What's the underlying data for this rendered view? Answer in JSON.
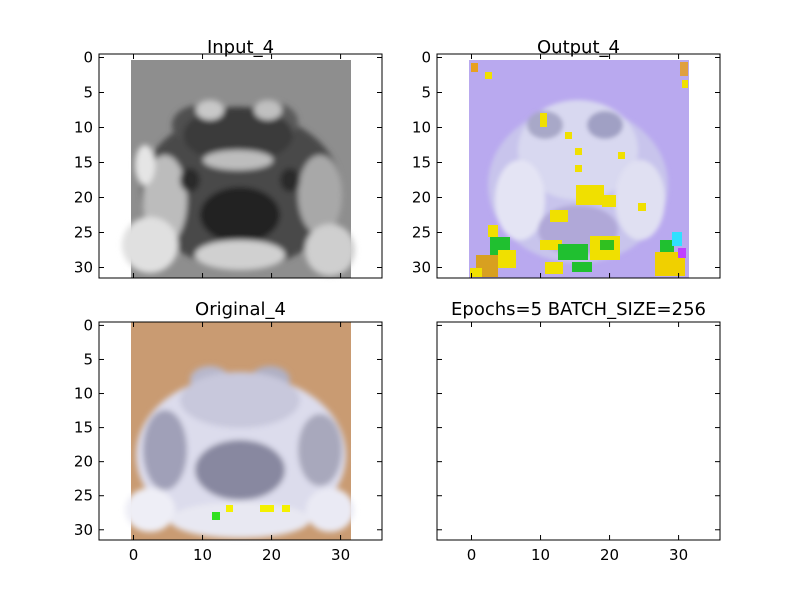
{
  "chart_data": [
    {
      "type": "image",
      "title": "Input_4",
      "xticks": [],
      "yticks": [
        "0",
        "5",
        "10",
        "15",
        "20",
        "25",
        "30"
      ],
      "image_extent": [
        0,
        31.5
      ],
      "colors": {
        "background": "#8e8e8e",
        "dark": "#2a2a2a",
        "light": "#dcdcdc"
      }
    },
    {
      "type": "image",
      "title": "Output_4",
      "xticks": [],
      "yticks": [
        "0",
        "5",
        "10",
        "15",
        "20",
        "25",
        "30"
      ],
      "image_extent": [
        0,
        31.5
      ],
      "colors": {
        "background": "#b9a9ef",
        "body": "#dcdcf0",
        "artifact_yellow": "#f0e000",
        "artifact_green": "#20c030",
        "artifact_cyan": "#30e0ff"
      }
    },
    {
      "type": "image",
      "title": "Original_4",
      "xticks": [
        "0",
        "10",
        "20",
        "30"
      ],
      "yticks": [
        "0",
        "5",
        "10",
        "15",
        "20",
        "25",
        "30"
      ],
      "image_extent": [
        0,
        31.5
      ],
      "colors": {
        "background": "#c99b72",
        "body": "#e6e6f2",
        "artifact_yellow": "#f4f000",
        "artifact_green": "#30e020"
      }
    },
    {
      "type": "empty",
      "title": "Epochs=5 BATCH_SIZE=256",
      "xticks": [
        "0",
        "10",
        "20",
        "30"
      ],
      "yticks": []
    }
  ]
}
